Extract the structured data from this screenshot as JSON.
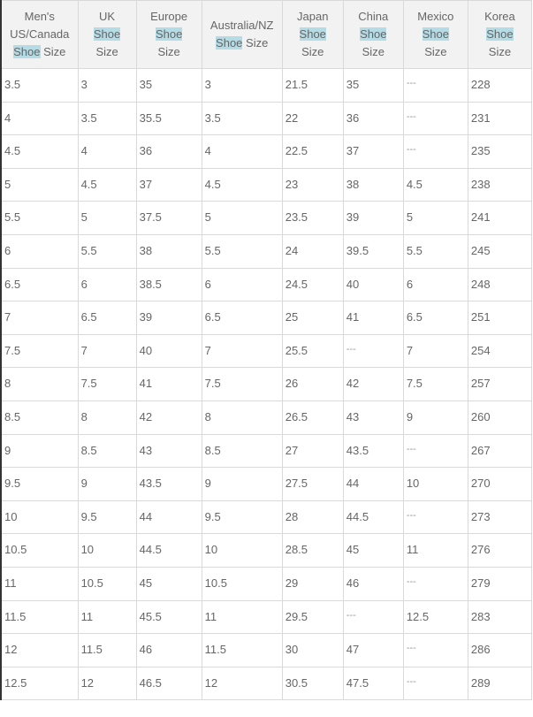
{
  "highlight_color": "#b3dce6",
  "headers": [
    {
      "lines": [
        [
          {
            "t": "Men's"
          }
        ],
        [
          {
            "t": "US/Canada"
          }
        ],
        [
          {
            "t": "Shoe",
            "hl": true
          },
          {
            "t": " Size"
          }
        ]
      ]
    },
    {
      "lines": [
        [
          {
            "t": "UK"
          }
        ],
        [
          {
            "t": "Shoe",
            "hl": true
          }
        ],
        [
          {
            "t": "Size"
          }
        ]
      ]
    },
    {
      "lines": [
        [
          {
            "t": "Europe"
          }
        ],
        [
          {
            "t": "Shoe",
            "hl": true
          }
        ],
        [
          {
            "t": "Size"
          }
        ]
      ]
    },
    {
      "lines": [
        [
          {
            "t": "Australia/NZ"
          }
        ],
        [
          {
            "t": "Shoe",
            "hl": true
          },
          {
            "t": " Size"
          }
        ]
      ]
    },
    {
      "lines": [
        [
          {
            "t": "Japan"
          }
        ],
        [
          {
            "t": "Shoe",
            "hl": true
          }
        ],
        [
          {
            "t": "Size"
          }
        ]
      ]
    },
    {
      "lines": [
        [
          {
            "t": "China"
          }
        ],
        [
          {
            "t": "Shoe",
            "hl": true
          }
        ],
        [
          {
            "t": "Size"
          }
        ]
      ]
    },
    {
      "lines": [
        [
          {
            "t": "Mexico"
          }
        ],
        [
          {
            "t": "Shoe",
            "hl": true
          }
        ],
        [
          {
            "t": "Size"
          }
        ]
      ]
    },
    {
      "lines": [
        [
          {
            "t": "Korea"
          }
        ],
        [
          {
            "t": "Shoe",
            "hl": true
          }
        ],
        [
          {
            "t": "Size"
          }
        ]
      ]
    }
  ],
  "rows": [
    [
      "3.5",
      "3",
      "35",
      "3",
      "21.5",
      "35",
      "---",
      "228"
    ],
    [
      "4",
      "3.5",
      "35.5",
      "3.5",
      "22",
      "36",
      "---",
      "231"
    ],
    [
      "4.5",
      "4",
      "36",
      "4",
      "22.5",
      "37",
      "---",
      "235"
    ],
    [
      "5",
      "4.5",
      "37",
      "4.5",
      "23",
      "38",
      "4.5",
      "238"
    ],
    [
      "5.5",
      "5",
      "37.5",
      "5",
      "23.5",
      "39",
      "5",
      "241"
    ],
    [
      "6",
      "5.5",
      "38",
      "5.5",
      "24",
      "39.5",
      "5.5",
      "245"
    ],
    [
      "6.5",
      "6",
      "38.5",
      "6",
      "24.5",
      "40",
      "6",
      "248"
    ],
    [
      "7",
      "6.5",
      "39",
      "6.5",
      "25",
      "41",
      "6.5",
      "251"
    ],
    [
      "7.5",
      "7",
      "40",
      "7",
      "25.5",
      "---",
      "7",
      "254"
    ],
    [
      "8",
      "7.5",
      "41",
      "7.5",
      "26",
      "42",
      "7.5",
      "257"
    ],
    [
      "8.5",
      "8",
      "42",
      "8",
      "26.5",
      "43",
      "9",
      "260"
    ],
    [
      "9",
      "8.5",
      "43",
      "8.5",
      "27",
      "43.5",
      "---",
      "267"
    ],
    [
      "9.5",
      "9",
      "43.5",
      "9",
      "27.5",
      "44",
      "10",
      "270"
    ],
    [
      "10",
      "9.5",
      "44",
      "9.5",
      "28",
      "44.5",
      "---",
      "273"
    ],
    [
      "10.5",
      "10",
      "44.5",
      "10",
      "28.5",
      "45",
      "11",
      "276"
    ],
    [
      "11",
      "10.5",
      "45",
      "10.5",
      "29",
      "46",
      "---",
      "279"
    ],
    [
      "11.5",
      "11",
      "45.5",
      "11",
      "29.5",
      "---",
      "12.5",
      "283"
    ],
    [
      "12",
      "11.5",
      "46",
      "11.5",
      "30",
      "47",
      "---",
      "286"
    ],
    [
      "12.5",
      "12",
      "46.5",
      "12",
      "30.5",
      "47.5",
      "---",
      "289"
    ]
  ]
}
